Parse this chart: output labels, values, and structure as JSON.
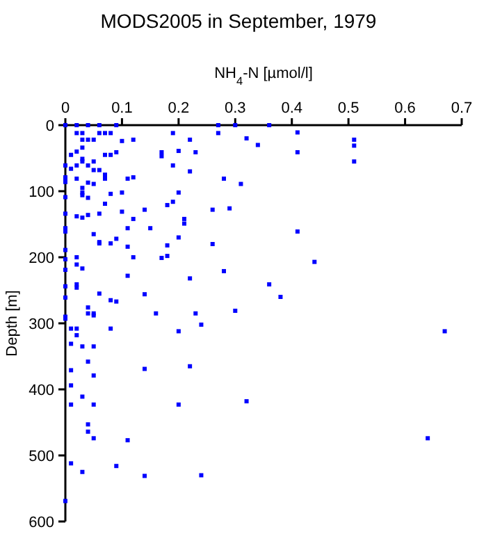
{
  "chart_data": {
    "type": "scatter",
    "title": "MODS2005 in September, 1979",
    "xlabel": "NH$_{4}$-N [µmol/l]",
    "ylabel": "Depth [m]",
    "xlim": [
      0,
      0.7
    ],
    "xticks": [
      0,
      0.1,
      0.2,
      0.3,
      0.4,
      0.5,
      0.6,
      0.7
    ],
    "ylim": [
      600,
      0
    ],
    "yticks": [
      0,
      100,
      200,
      300,
      400,
      500,
      600
    ],
    "grid": false,
    "marker": "square",
    "series": [
      {
        "color": "#0000ff",
        "x": [
          0,
          0.02,
          0.04,
          0.06,
          0.09,
          0.27,
          0.3,
          0.36,
          0.02,
          0.03,
          0.06,
          0.07,
          0.08,
          0.19,
          0.27,
          0.41,
          0.03,
          0.04,
          0.05,
          0.12,
          0.22,
          0.32,
          0.51,
          0.1,
          0.03,
          0.34,
          0.51,
          0.2,
          0.23,
          0.02,
          0.09,
          0.41,
          0.01,
          0.07,
          0.08,
          0.17,
          0.17,
          0.03,
          0.03,
          0.05,
          0.51,
          0,
          0.02,
          0.04,
          0.19,
          0.01,
          0.05,
          0.06,
          0.22,
          0.07,
          0,
          0,
          0,
          0.02,
          0.07,
          0.11,
          0.12,
          0.28,
          0.31,
          0.04,
          0.05,
          0.03,
          0.03,
          0.03,
          0,
          0.04,
          0.08,
          0.1,
          0.2,
          0.19,
          0.18,
          0.07,
          0.1,
          0.14,
          0.26,
          0.29,
          0,
          0.06,
          0.02,
          0.03,
          0.04,
          0.12,
          0.21,
          0.21,
          0,
          0,
          0.11,
          0.15,
          0.41,
          0.05,
          0.09,
          0.2,
          0.06,
          0.06,
          0.08,
          0.11,
          0.18,
          0.26,
          0,
          0.02,
          0.12,
          0.17,
          0.18,
          0,
          0.44,
          0.02,
          0.03,
          0,
          0.11,
          0.22,
          0.28,
          0,
          0.02,
          0.02,
          0.36,
          0.06,
          0.14,
          0,
          0.38,
          0.08,
          0.09,
          0.04,
          0.04,
          0.05,
          0.05,
          0,
          0.16,
          0.23,
          0.3,
          0,
          0.01,
          0.02,
          0.08,
          0.2,
          0.24,
          0.67,
          0.02,
          0.01,
          0.03,
          0.05,
          0.04,
          0.05,
          0.01,
          0.14,
          0.22,
          0.01,
          0.03,
          0.01,
          0.05,
          0.2,
          0.32,
          0.04,
          0.04,
          0.05,
          0.11,
          0.64,
          0.01,
          0.03,
          0.09,
          0.14,
          0.24,
          0
        ],
        "values": [
          0,
          0,
          0,
          0,
          0,
          0,
          0,
          0,
          12,
          12,
          12,
          12,
          12,
          12,
          12,
          11,
          22,
          22,
          22,
          22,
          22,
          20,
          22,
          24,
          34,
          30,
          31,
          39,
          41,
          40,
          41,
          41,
          45,
          45,
          45,
          41,
          47,
          51,
          55,
          55,
          55,
          61,
          61,
          61,
          61,
          66,
          68,
          68,
          70,
          75,
          79,
          84,
          86,
          81,
          81,
          81,
          79,
          81,
          89,
          87,
          89,
          95,
          102,
          106,
          109,
          110,
          104,
          102,
          102,
          116,
          121,
          119,
          131,
          128,
          128,
          126,
          134,
          134,
          138,
          140,
          136,
          142,
          142,
          149,
          156,
          161,
          156,
          156,
          161,
          165,
          172,
          170,
          177,
          179,
          179,
          184,
          182,
          180,
          189,
          200,
          200,
          201,
          198,
          203,
          207,
          211,
          217,
          219,
          228,
          232,
          221,
          244,
          241,
          246,
          241,
          255,
          256,
          261,
          260,
          265,
          267,
          276,
          285,
          285,
          288,
          290,
          285,
          285,
          281,
          293,
          308,
          308,
          308,
          312,
          302,
          312,
          318,
          331,
          335,
          335,
          358,
          379,
          371,
          369,
          365,
          394,
          411,
          423,
          423,
          423,
          418,
          453,
          464,
          474,
          477,
          474,
          512,
          525,
          516,
          531,
          530,
          569
        ]
      }
    ]
  }
}
